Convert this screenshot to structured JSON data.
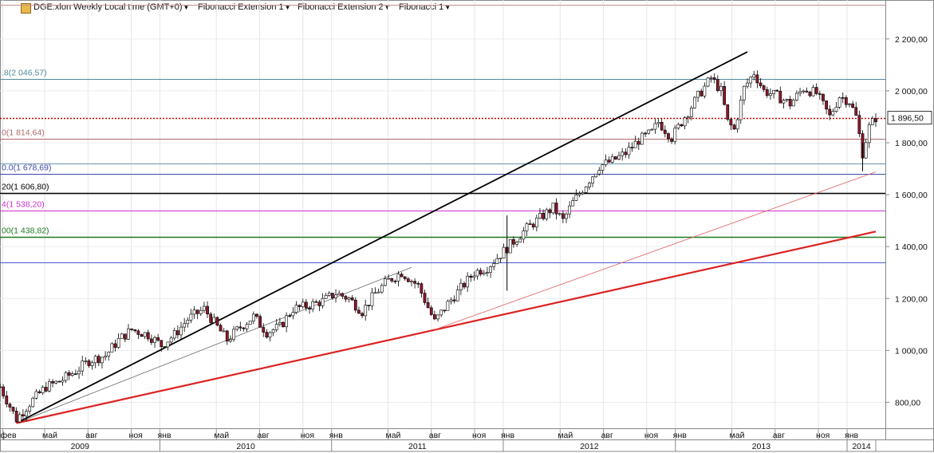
{
  "toolbar": {
    "symbol_title": "DGE:xlon Weekly Local time (GMT+0)",
    "indicators": [
      "Fibonacci Extension 1",
      "Fibonacci Extension 2",
      "Fibonacci 1"
    ]
  },
  "price_label": "1 896,50",
  "chart_data": {
    "type": "candlestick",
    "symbol": "DGE:xlon",
    "interval": "Weekly",
    "ylim": [
      700,
      2350
    ],
    "y_ticks": [
      {
        "value": 800,
        "label": "800,00"
      },
      {
        "value": 1000,
        "label": "1 000,00"
      },
      {
        "value": 1200,
        "label": "1 200,00"
      },
      {
        "value": 1400,
        "label": "1 400,00"
      },
      {
        "value": 1600,
        "label": "1 600,00"
      },
      {
        "value": 1800,
        "label": "1 800,00"
      },
      {
        "value": 2000,
        "label": "2 000,00"
      },
      {
        "value": 2200,
        "label": "2 200,00"
      }
    ],
    "x_range": [
      "2009-01-26",
      "2014-03-03"
    ],
    "month_ticks": [
      {
        "date": "2009-02-01",
        "label": "фев"
      },
      {
        "date": "2009-05-01",
        "label": "май"
      },
      {
        "date": "2009-08-01",
        "label": "авг"
      },
      {
        "date": "2009-11-01",
        "label": "ноя"
      },
      {
        "date": "2010-01-01",
        "label": "янв"
      },
      {
        "date": "2010-05-01",
        "label": "май"
      },
      {
        "date": "2010-08-01",
        "label": "авг"
      },
      {
        "date": "2010-11-01",
        "label": "ноя"
      },
      {
        "date": "2011-01-01",
        "label": "янв"
      },
      {
        "date": "2011-05-01",
        "label": "май"
      },
      {
        "date": "2011-08-01",
        "label": "авг"
      },
      {
        "date": "2011-11-01",
        "label": "ноя"
      },
      {
        "date": "2012-01-01",
        "label": "янв"
      },
      {
        "date": "2012-05-01",
        "label": "май"
      },
      {
        "date": "2012-08-01",
        "label": "авг"
      },
      {
        "date": "2012-11-01",
        "label": "ноя"
      },
      {
        "date": "2013-01-01",
        "label": "янв"
      },
      {
        "date": "2013-05-01",
        "label": "май"
      },
      {
        "date": "2013-08-01",
        "label": "авг"
      },
      {
        "date": "2013-11-01",
        "label": "ноя"
      },
      {
        "date": "2014-01-01",
        "label": "янв"
      }
    ],
    "year_ticks": [
      {
        "label": "2009",
        "start": "2009-01-26",
        "end": "2010-01-01"
      },
      {
        "label": "2010",
        "start": "2010-01-01",
        "end": "2011-01-01"
      },
      {
        "label": "2011",
        "start": "2011-01-01",
        "end": "2012-01-01"
      },
      {
        "label": "2012",
        "start": "2012-01-01",
        "end": "2013-01-01"
      },
      {
        "label": "2013",
        "start": "2013-01-01",
        "end": "2014-01-01"
      },
      {
        "label": "2014",
        "start": "2014-01-01",
        "end": "2014-03-03"
      }
    ],
    "last_price": 1896.5,
    "price_path": [
      [
        "2009-01-26",
        860
      ],
      [
        "2009-03-02",
        735
      ],
      [
        "2009-04-01",
        800
      ],
      [
        "2009-05-04",
        860
      ],
      [
        "2009-06-01",
        880
      ],
      [
        "2009-07-06",
        920
      ],
      [
        "2009-08-03",
        960
      ],
      [
        "2009-09-07",
        980
      ],
      [
        "2009-10-05",
        1040
      ],
      [
        "2009-11-02",
        1080
      ],
      [
        "2009-12-07",
        1060
      ],
      [
        "2010-01-04",
        1020
      ],
      [
        "2010-02-01",
        1060
      ],
      [
        "2010-03-01",
        1120
      ],
      [
        "2010-04-05",
        1160
      ],
      [
        "2010-05-03",
        1090
      ],
      [
        "2010-05-24",
        1040
      ],
      [
        "2010-06-21",
        1090
      ],
      [
        "2010-07-19",
        1130
      ],
      [
        "2010-08-16",
        1070
      ],
      [
        "2010-09-13",
        1090
      ],
      [
        "2010-10-11",
        1160
      ],
      [
        "2010-11-08",
        1170
      ],
      [
        "2010-12-13",
        1190
      ],
      [
        "2011-01-10",
        1220
      ],
      [
        "2011-02-07",
        1200
      ],
      [
        "2011-03-07",
        1150
      ],
      [
        "2011-04-04",
        1220
      ],
      [
        "2011-05-02",
        1270
      ],
      [
        "2011-05-30",
        1300
      ],
      [
        "2011-07-04",
        1250
      ],
      [
        "2011-08-08",
        1110
      ],
      [
        "2011-09-05",
        1180
      ],
      [
        "2011-10-03",
        1240
      ],
      [
        "2011-10-31",
        1300
      ],
      [
        "2011-11-28",
        1320
      ],
      [
        "2011-12-26",
        1370
      ],
      [
        "2012-01-23",
        1420
      ],
      [
        "2012-02-20",
        1470
      ],
      [
        "2012-03-19",
        1510
      ],
      [
        "2012-04-16",
        1550
      ],
      [
        "2012-05-07",
        1500
      ],
      [
        "2012-05-28",
        1570
      ],
      [
        "2012-06-25",
        1640
      ],
      [
        "2012-07-23",
        1710
      ],
      [
        "2012-08-20",
        1730
      ],
      [
        "2012-09-17",
        1760
      ],
      [
        "2012-10-15",
        1810
      ],
      [
        "2012-11-12",
        1840
      ],
      [
        "2012-11-26",
        1880
      ],
      [
        "2012-12-24",
        1820
      ],
      [
        "2013-01-21",
        1900
      ],
      [
        "2013-02-18",
        1980
      ],
      [
        "2013-03-18",
        2050
      ],
      [
        "2013-04-08",
        2000
      ],
      [
        "2013-04-22",
        1880
      ],
      [
        "2013-05-06",
        1850
      ],
      [
        "2013-05-27",
        2010
      ],
      [
        "2013-06-17",
        2070
      ],
      [
        "2013-07-08",
        2000
      ],
      [
        "2013-08-05",
        1980
      ],
      [
        "2013-09-02",
        1950
      ],
      [
        "2013-09-30",
        2010
      ],
      [
        "2013-10-28",
        1990
      ],
      [
        "2013-11-25",
        1900
      ],
      [
        "2013-12-16",
        1980
      ],
      [
        "2014-01-06",
        1960
      ],
      [
        "2014-01-20",
        1900
      ],
      [
        "2014-02-03",
        1760
      ],
      [
        "2014-02-17",
        1860
      ],
      [
        "2014-03-03",
        1896.5
      ]
    ],
    "horizontal_lines": [
      {
        "value": 2333,
        "color": "#c98d8d",
        "width": 1,
        "label": ""
      },
      {
        "value": 2046.57,
        "color": "#4f8a9a",
        "width": 1,
        "label": ".8(2 046,57)"
      },
      {
        "value": 1896.5,
        "color": "#cc0000",
        "width": 1.5,
        "dash": "2,2",
        "label": ""
      },
      {
        "value": 1814.64,
        "color": "#b26a6a",
        "width": 1,
        "label": "0(1 814,64)"
      },
      {
        "value": 1720,
        "color": "#6e8fb0",
        "width": 1,
        "label": ""
      },
      {
        "value": 1678.69,
        "color": "#3a4aa8",
        "width": 1,
        "label": "0.0(1 678,69)"
      },
      {
        "value": 1606.8,
        "color": "#000000",
        "width": 1.5,
        "label": "20(1 606,80)"
      },
      {
        "value": 1538.2,
        "color": "#cc33cc",
        "width": 1,
        "label": "4(1 538,20)"
      },
      {
        "value": 1438.82,
        "color": "#1f7a1f",
        "width": 1.5,
        "label": "00(1 438,82)"
      },
      {
        "value": 1340,
        "color": "#4a5ad0",
        "width": 1,
        "label": ""
      }
    ],
    "trend_lines": [
      {
        "from": [
          "2009-03-02",
          720
        ],
        "to": [
          "2013-06-03",
          2150
        ],
        "color": "#000000",
        "width": 1.8
      },
      {
        "from": [
          "2009-03-02",
          720
        ],
        "to": [
          "2011-06-20",
          1320
        ],
        "color": "#555555",
        "width": 0.7
      },
      {
        "from": [
          "2009-03-02",
          720
        ],
        "to": [
          "2014-03-03",
          1458
        ],
        "color": "#dd2222",
        "width": 2.2
      },
      {
        "from": [
          "2011-08-08",
          1080
        ],
        "to": [
          "2014-03-03",
          1688
        ],
        "color": "#e06060",
        "width": 0.8
      }
    ],
    "spikes": [
      {
        "date": "2012-01-09",
        "low": 1230,
        "high": 1520
      },
      {
        "date": "2014-02-03",
        "low": 1690,
        "high": 1800
      }
    ]
  }
}
